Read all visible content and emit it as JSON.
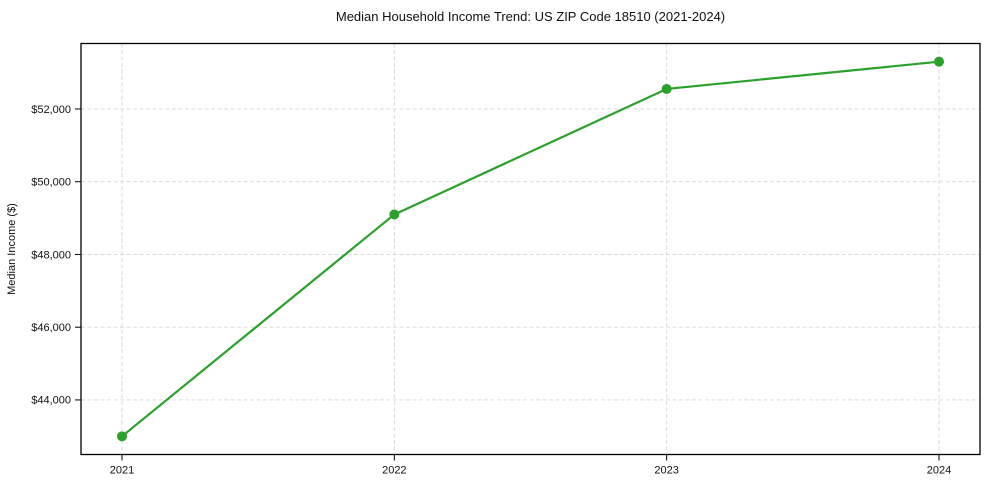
{
  "chart_data": {
    "type": "line",
    "title": "Median Household Income Trend: US ZIP Code 18510 (2021-2024)",
    "xlabel": "",
    "ylabel": "Median Income ($)",
    "categories": [
      "2021",
      "2022",
      "2023",
      "2024"
    ],
    "series": [
      {
        "values": [
          43000,
          49100,
          52550,
          53300
        ],
        "color": "#2ca02c",
        "marker": "circle"
      }
    ],
    "yticks": [
      44000,
      46000,
      48000,
      50000,
      52000
    ],
    "ytick_labels": [
      "$44,000",
      "$46,000",
      "$48,000",
      "$50,000",
      "$52,000"
    ],
    "ylim": [
      42500,
      53800
    ],
    "grid": "dashed",
    "grid_color": "#d7d7d7",
    "axis_color": "#000000",
    "text_color": "#111111",
    "background_color": "#ffffff",
    "legend": "none"
  }
}
